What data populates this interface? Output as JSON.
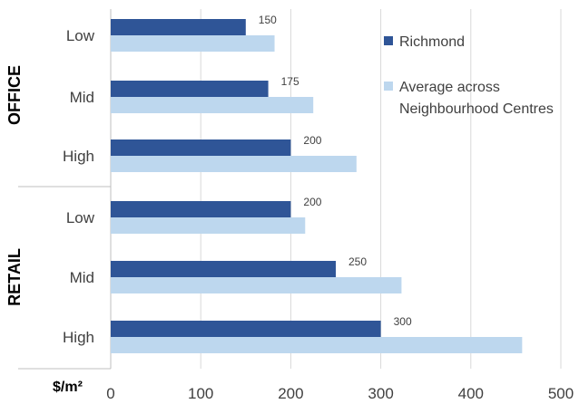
{
  "chart_data": {
    "type": "bar",
    "orientation": "horizontal",
    "groups": [
      {
        "label": "OFFICE",
        "categories": [
          "Low",
          "Mid",
          "High"
        ]
      },
      {
        "label": "RETAIL",
        "categories": [
          "Low",
          "Mid",
          "High"
        ]
      }
    ],
    "series": [
      {
        "name": "Richmond",
        "color": "#2f5597",
        "values": [
          150,
          175,
          200,
          200,
          250,
          300
        ],
        "data_labels": [
          "150",
          "175",
          "200",
          "200",
          "250",
          "300"
        ]
      },
      {
        "name": "Average across Neighbourhood Centres",
        "color": "#bdd7ee",
        "values": [
          182,
          225,
          273,
          216,
          323,
          457
        ]
      }
    ],
    "xlim": [
      0,
      500
    ],
    "xticks": [
      "0",
      "100",
      "200",
      "300",
      "400",
      "500"
    ],
    "unit_label": "$/m²",
    "grid": true,
    "legend_position": "right"
  },
  "legend": {
    "series1": "Richmond",
    "series2_line1": "Average across",
    "series2_line2": "Neighbourhood Centres"
  }
}
